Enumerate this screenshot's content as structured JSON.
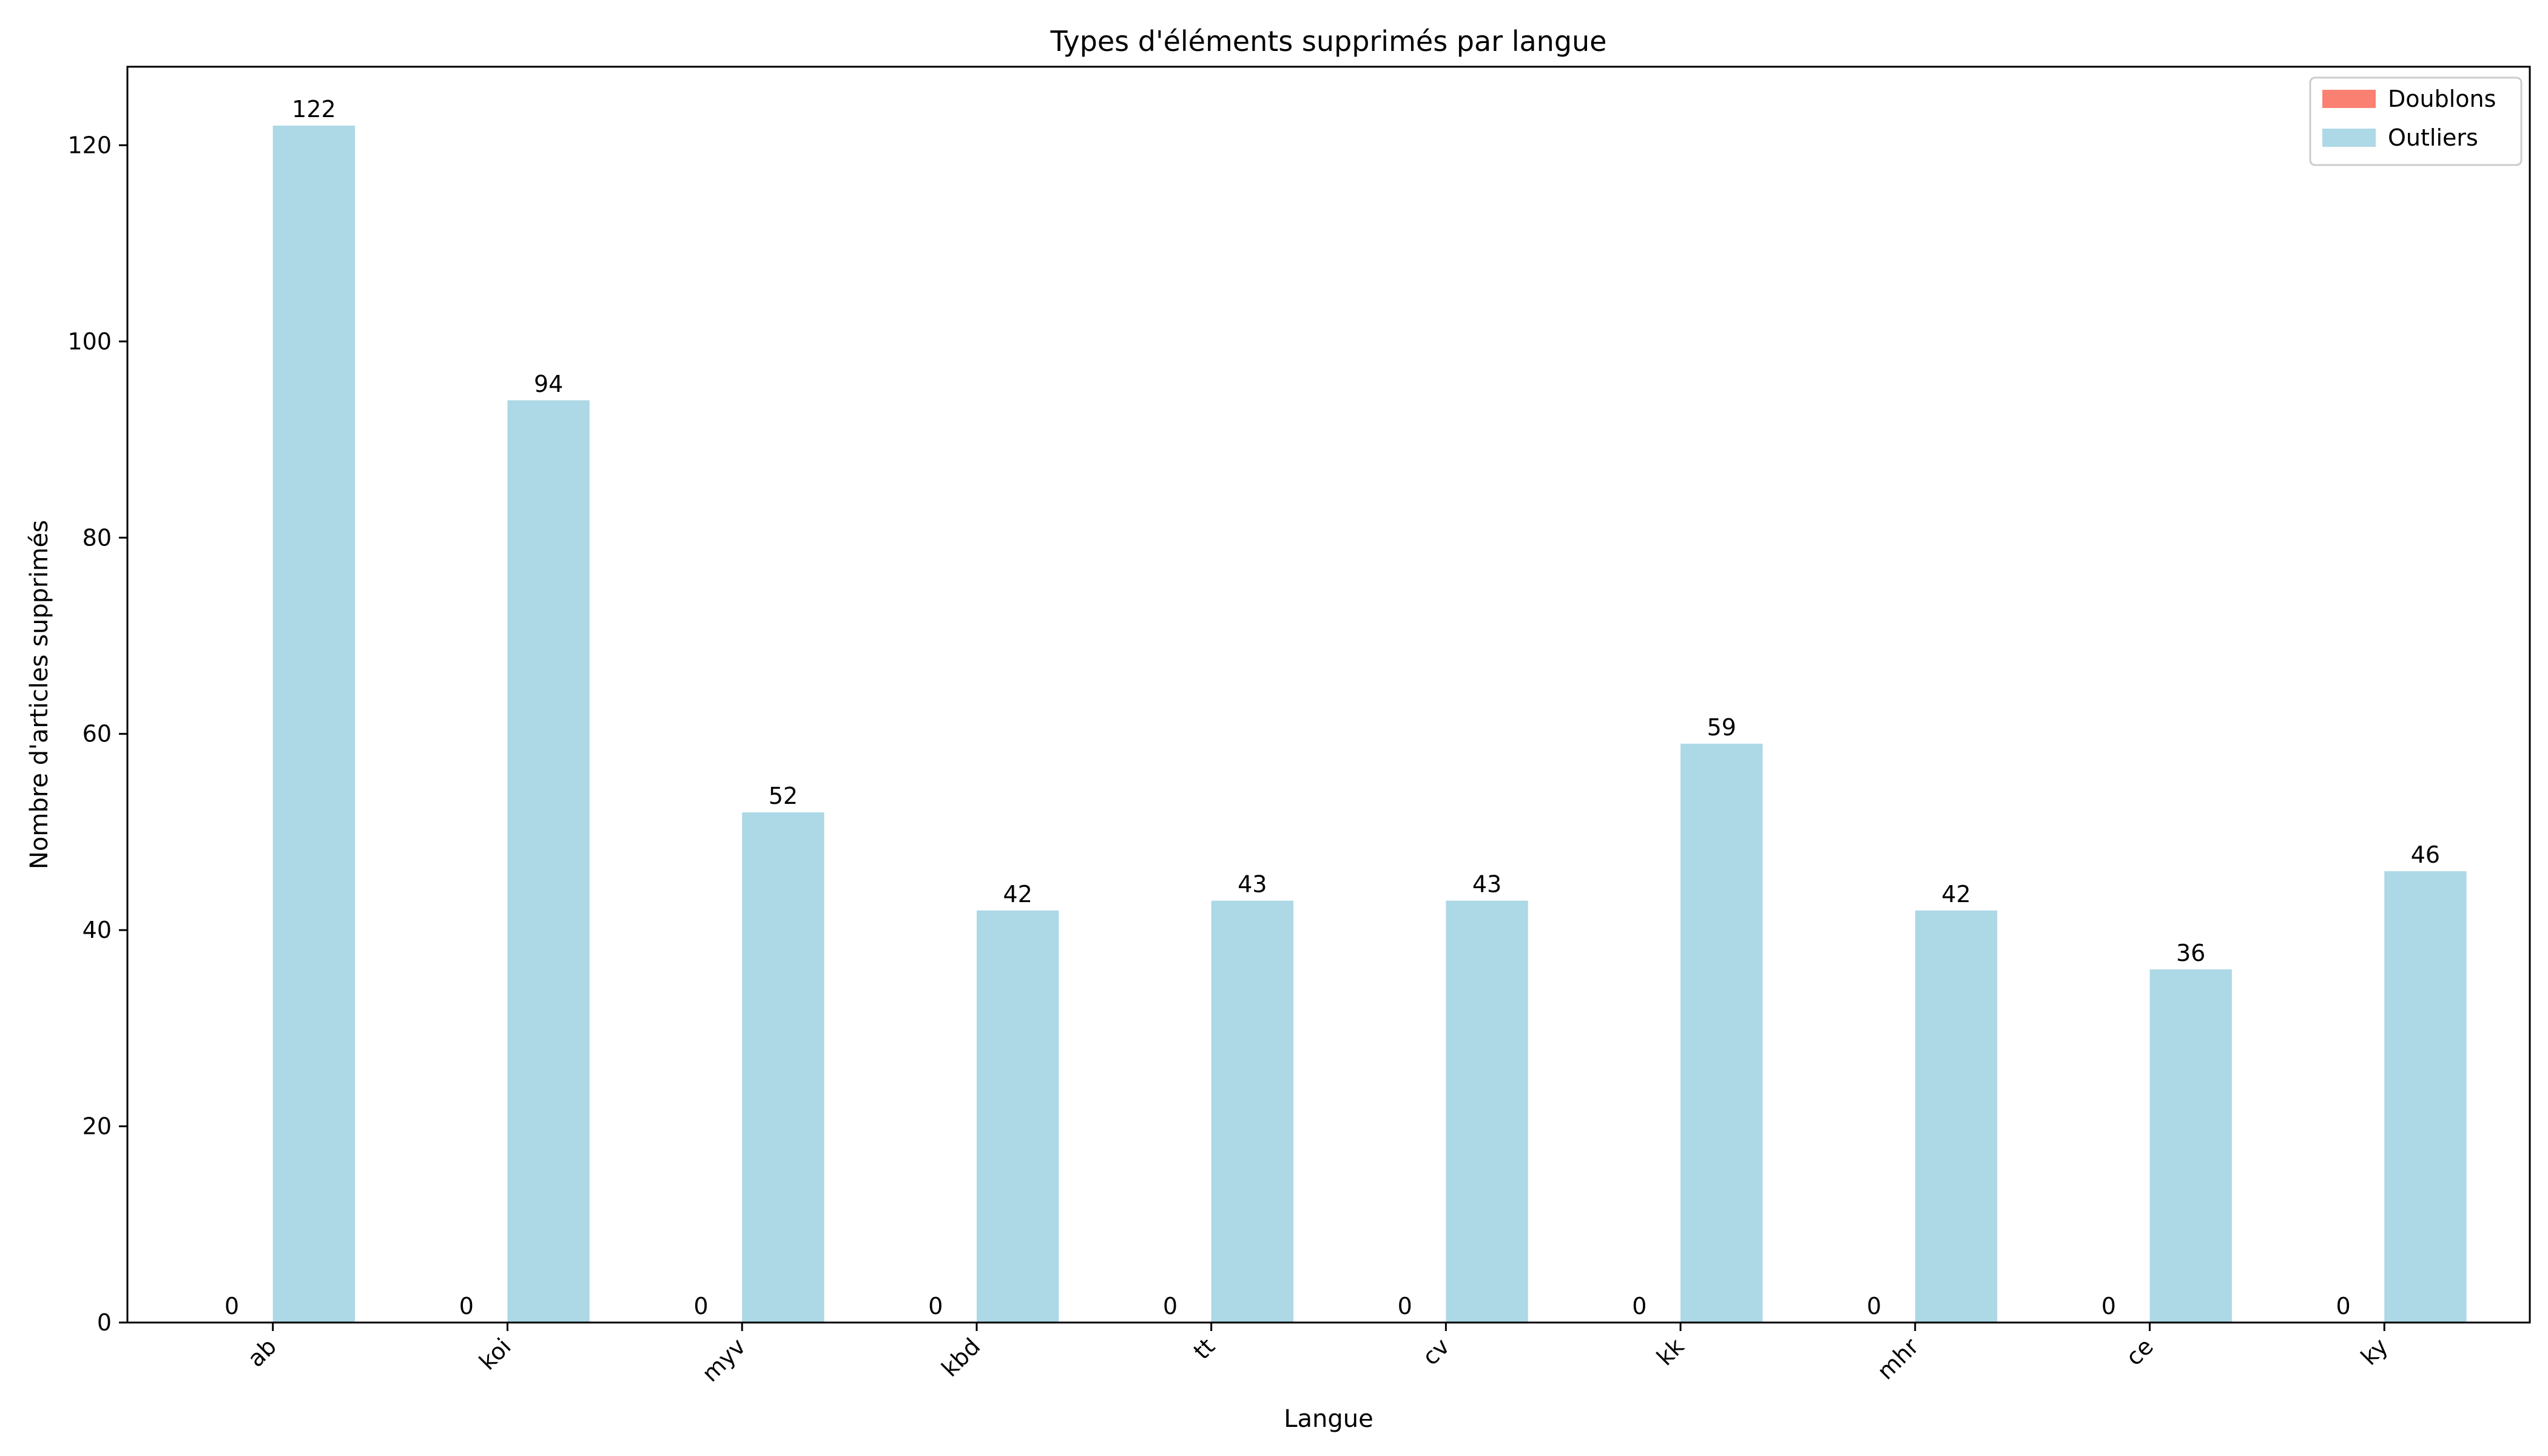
{
  "chart_data": {
    "type": "bar",
    "title": "Types d'éléments supprimés par langue",
    "xlabel": "Langue",
    "ylabel": "Nombre d'articles supprimés",
    "categories": [
      "ab",
      "koi",
      "myv",
      "kbd",
      "tt",
      "cv",
      "kk",
      "mhr",
      "ce",
      "ky"
    ],
    "series": [
      {
        "name": "Doublons",
        "color": "#fa8072",
        "values": [
          0,
          0,
          0,
          0,
          0,
          0,
          0,
          0,
          0,
          0
        ]
      },
      {
        "name": "Outliers",
        "color": "#add8e6",
        "values": [
          122,
          94,
          52,
          42,
          43,
          43,
          59,
          42,
          36,
          46
        ]
      }
    ],
    "ylim": [
      0,
      128
    ],
    "yticks": [
      0,
      20,
      40,
      60,
      80,
      100,
      120
    ],
    "grid": false,
    "legend": "top-right",
    "data_labels": true
  }
}
